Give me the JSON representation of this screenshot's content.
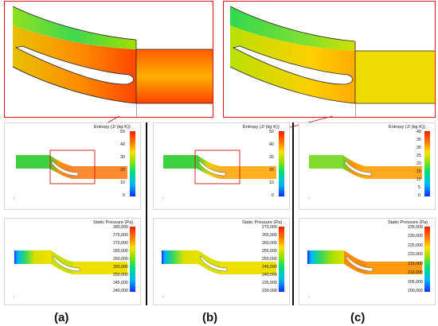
{
  "captions": [
    "(a)",
    "(b)",
    "(c)"
  ],
  "entropy_colorbar": {
    "title": "Entropy (J/ (kg·K))",
    "ticks_ab": [
      "50",
      "40",
      "30",
      "20",
      "10",
      "0"
    ],
    "ticks_c": [
      "40",
      "35",
      "30",
      "25",
      "20",
      "15",
      "10",
      "5",
      "0"
    ]
  },
  "pressure_colorbars": [
    {
      "title": "Static Pressure (Pa)",
      "ticks": [
        "280,000",
        "275,000",
        "270,000",
        "265,000",
        "260,000",
        "255,000",
        "250,000",
        "245,000",
        "240,000"
      ]
    },
    {
      "title": "Static Pressure (Pa)",
      "ticks": [
        "270,000",
        "265,000",
        "260,000",
        "255,000",
        "250,000",
        "245,000",
        "240,000",
        "235,000",
        "230,000"
      ]
    },
    {
      "title": "Static Pressure (Pa)",
      "ticks": [
        "235,000",
        "230,000",
        "225,000",
        "220,000",
        "215,000",
        "210,000",
        "205,000",
        "200,000"
      ]
    }
  ],
  "colors": {
    "zoom_border": "#d11111",
    "low": "#1030ff",
    "mid": "#00e070",
    "high": "#ff1a00"
  }
}
